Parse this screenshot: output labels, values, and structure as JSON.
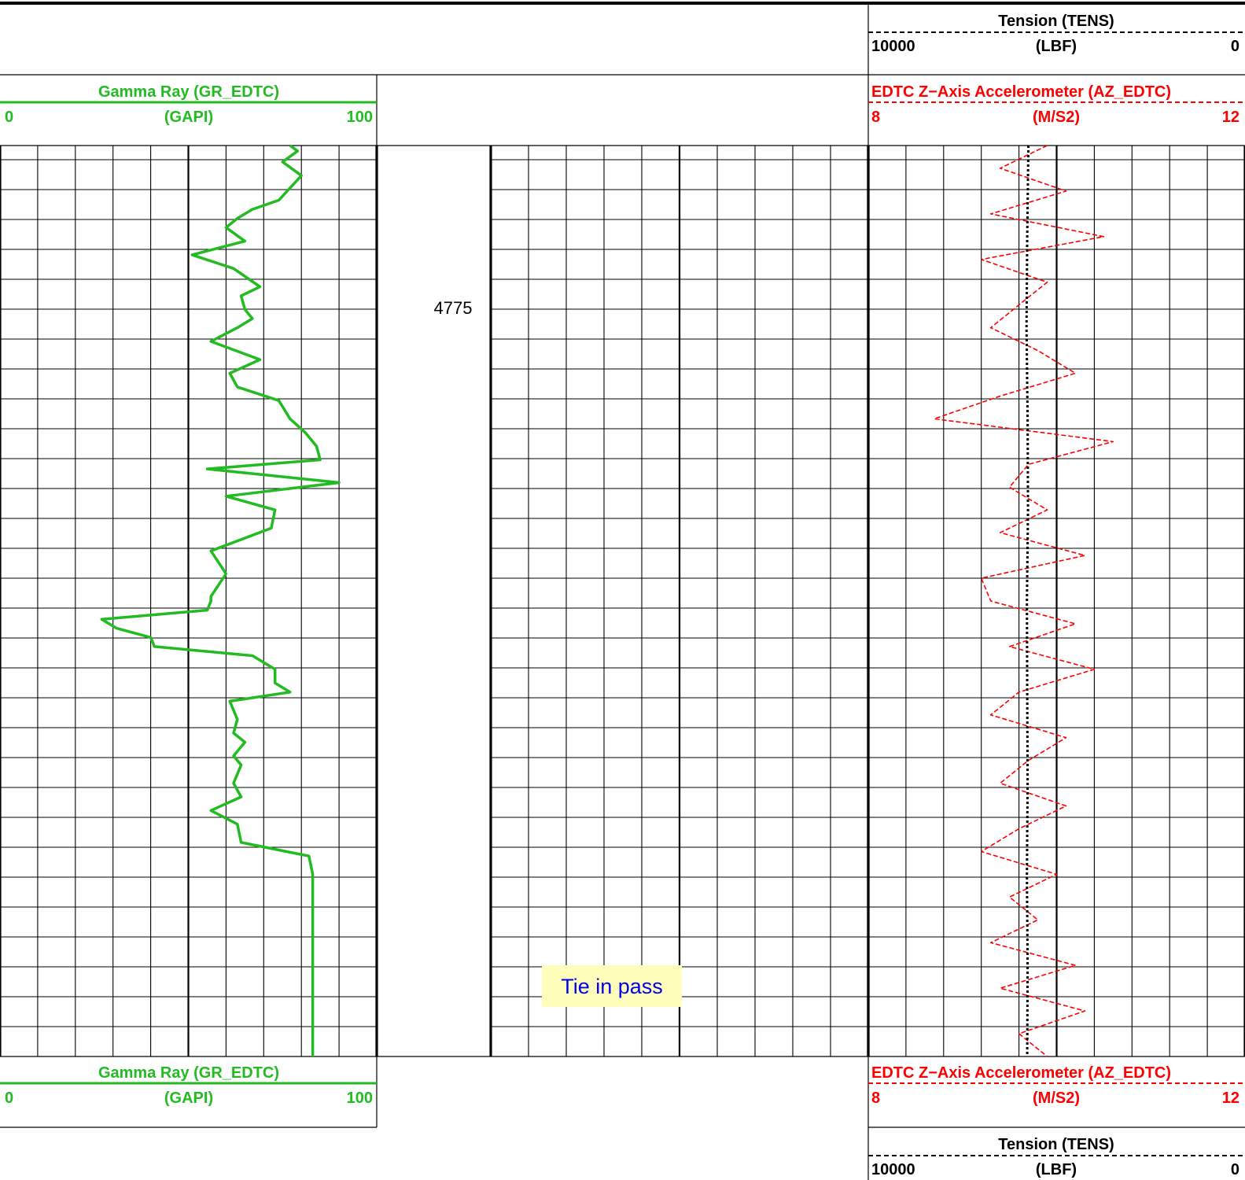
{
  "colors": {
    "gamma": "#22bb22",
    "accel": "#ff0000",
    "tension": "#000000",
    "note_text": "#0000ee",
    "note_bg": "#ffffbb",
    "grid": "#000000"
  },
  "headers": {
    "tension": {
      "title": "Tension (TENS)",
      "unit": "(LBF)",
      "left": "10000",
      "right": "0"
    },
    "gamma": {
      "title": "Gamma Ray (GR_EDTC)",
      "unit": "(GAPI)",
      "left": "0",
      "right": "100"
    },
    "accel": {
      "title": "EDTC Z−Axis Accelerometer (AZ_EDTC)",
      "unit": "(M/S2)",
      "left": "8",
      "right": "12"
    }
  },
  "depth_label": "4775",
  "annotation": "Tie in pass",
  "chart_data": {
    "type": "line",
    "depth_ticks": [
      {
        "label": "4775"
      }
    ],
    "tracks": [
      {
        "name": "Gamma Ray (GR_EDTC)",
        "unit": "GAPI",
        "range": [
          0,
          100
        ],
        "grid": "linear",
        "series": [
          {
            "name": "GR_EDTC",
            "style": "solid",
            "depth": [
              0,
              0.006,
              0.018,
              0.033,
              0.06,
              0.07,
              0.08,
              0.09,
              0.105,
              0.12,
              0.135,
              0.155,
              0.165,
              0.18,
              0.19,
              0.2,
              0.215,
              0.235,
              0.25,
              0.265,
              0.28,
              0.3,
              0.315,
              0.33,
              0.345,
              0.355,
              0.37,
              0.385,
              0.4,
              0.42,
              0.445,
              0.47,
              0.495,
              0.5,
              0.51,
              0.52,
              0.53,
              0.54,
              0.55,
              0.56,
              0.575,
              0.59,
              0.6,
              0.61,
              0.63,
              0.645,
              0.655,
              0.67,
              0.68,
              0.69,
              0.7,
              0.715,
              0.73,
              0.745,
              0.765,
              0.78,
              0.8,
              0.815,
              0.83,
              0.84,
              0.85,
              0.86,
              0.87,
              0.88,
              0.9,
              0.92,
              0.94,
              0.96,
              0.98,
              1.0
            ],
            "value": [
              77,
              79,
              75,
              80,
              74,
              67,
              63,
              60,
              65,
              51,
              62,
              69,
              64,
              65,
              67,
              63,
              56,
              69,
              61,
              63,
              74,
              77,
              81,
              84,
              85,
              55,
              90,
              60,
              73,
              72,
              56,
              60,
              56,
              56,
              55,
              27,
              31,
              40,
              41,
              67,
              73,
              73,
              77,
              61,
              63,
              62,
              65,
              62,
              64,
              63,
              62,
              64,
              56,
              63,
              64,
              82,
              83,
              83,
              83,
              83,
              83,
              83,
              83,
              83,
              83,
              83,
              83,
              83,
              83,
              83
            ]
          }
        ]
      },
      {
        "name": "blank",
        "unit": "",
        "range": [
          0,
          1
        ],
        "grid": "linear",
        "series": []
      },
      {
        "name": "EDTC Z−Axis Accelerometer (AZ_EDTC) / Tension (TENS)",
        "unit": "M/S2 | LBF",
        "range": [
          8,
          12
        ],
        "grid": "linear",
        "series": [
          {
            "name": "AZ_EDTC",
            "unit": "M/S2",
            "range": [
              8,
              12
            ],
            "style": "dashed",
            "depth": [
              0,
              0.025,
              0.05,
              0.075,
              0.1,
              0.125,
              0.15,
              0.175,
              0.2,
              0.225,
              0.25,
              0.275,
              0.3,
              0.325,
              0.35,
              0.375,
              0.4,
              0.425,
              0.45,
              0.475,
              0.5,
              0.525,
              0.55,
              0.575,
              0.6,
              0.625,
              0.65,
              0.675,
              0.7,
              0.725,
              0.75,
              0.775,
              0.8,
              0.825,
              0.85,
              0.875,
              0.9,
              0.925,
              0.95,
              0.975,
              1.0
            ],
            "value": [
              9.9,
              9.4,
              10.1,
              9.3,
              10.5,
              9.2,
              9.9,
              9.6,
              9.3,
              9.8,
              10.2,
              9.4,
              8.7,
              10.6,
              9.7,
              9.5,
              9.9,
              9.4,
              10.3,
              9.2,
              9.3,
              10.2,
              9.5,
              10.4,
              9.6,
              9.3,
              10.1,
              9.7,
              9.4,
              10.1,
              9.6,
              9.2,
              10.0,
              9.5,
              9.8,
              9.3,
              10.2,
              9.4,
              10.3,
              9.6,
              9.9
            ]
          },
          {
            "name": "TENS",
            "unit": "LBF",
            "range": [
              10000,
              0
            ],
            "style": "dotted",
            "depth": [
              0,
              0.1,
              0.2,
              0.3,
              0.4,
              0.5,
              0.6,
              0.7,
              0.8,
              0.9,
              1.0
            ],
            "value": [
              5750,
              5780,
              5800,
              5770,
              5760,
              5790,
              5780,
              5770,
              5790,
              5770,
              5780
            ]
          }
        ]
      }
    ]
  }
}
